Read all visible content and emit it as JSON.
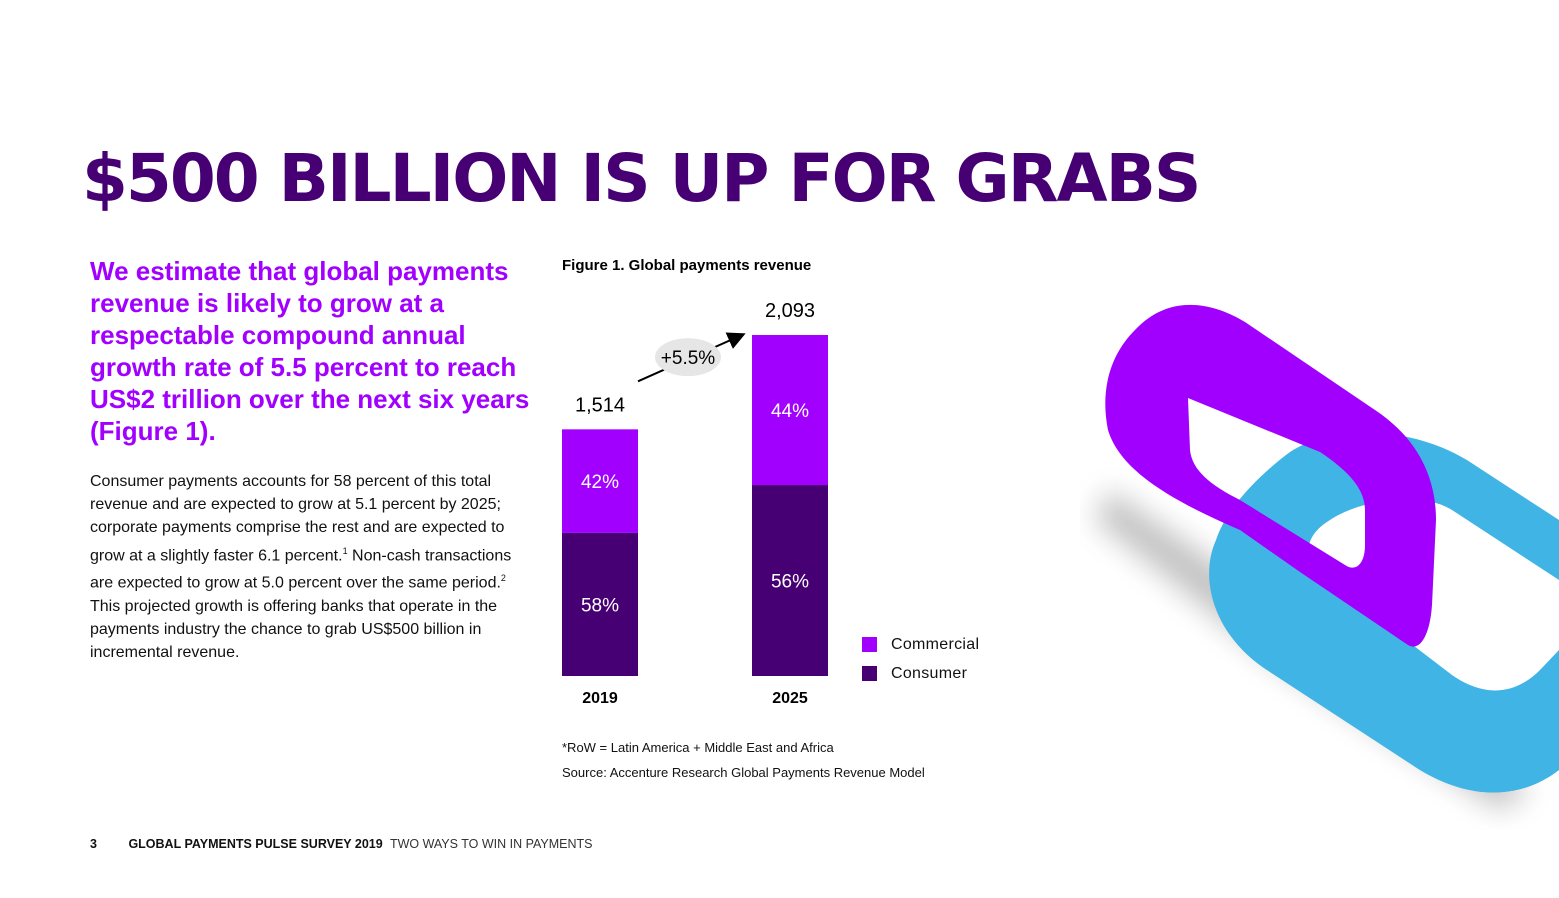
{
  "headline": "$500 BILLION IS UP FOR GRABS",
  "lead": "We estimate that global payments revenue is likely to grow at a respectable compound annual growth rate of 5.5 percent to reach US$2 trillion over the next six years (Figure 1).",
  "body_segments": [
    {
      "text": "Consumer payments accounts for 58 percent of this total revenue and are expected to grow at 5.1 percent by 2025; corporate payments comprise the rest and are expected to grow at a slightly faster 6.1 percent."
    },
    {
      "sup": "1"
    },
    {
      "text": " Non-cash transactions are expected to grow at 5.0 percent over the same period."
    },
    {
      "sup": "2"
    },
    {
      "text": " This projected growth is offering banks that operate in the payments industry the chance to grab US$500 billion in incremental revenue."
    }
  ],
  "figure": {
    "title": "Figure 1. Global payments revenue",
    "note": "*RoW = Latin America + Middle East and Africa",
    "source": "Source: Accenture Research Global Payments Revenue Model"
  },
  "chart_data": {
    "type": "bar",
    "stacked": true,
    "title": "Figure 1. Global payments revenue",
    "categories": [
      "2019",
      "2025"
    ],
    "totals": [
      1514,
      2093
    ],
    "total_labels": [
      "1,514",
      "2,093"
    ],
    "series": [
      {
        "name": "Consumer",
        "color": "#460073",
        "percent": [
          58,
          56
        ],
        "labels": [
          "58%",
          "56%"
        ]
      },
      {
        "name": "Commercial",
        "color": "#a100ff",
        "percent": [
          42,
          44
        ],
        "labels": [
          "42%",
          "44%"
        ]
      }
    ],
    "growth_label": "+5.5%",
    "legend_position": "right",
    "legend": [
      {
        "name": "Commercial",
        "color": "#a100ff"
      },
      {
        "name": "Consumer",
        "color": "#460073"
      }
    ],
    "ylim": [
      0,
      2093
    ],
    "grid": false
  },
  "footer": {
    "page_number": "3",
    "publication": "GLOBAL PAYMENTS PULSE SURVEY 2019",
    "subtitle": "TWO WAYS TO WIN IN PAYMENTS"
  },
  "colors": {
    "primary_dark": "#460073",
    "accent_purple": "#a100ff",
    "chain_blue": "#41b4e6"
  },
  "illustration": "chain-link-icon"
}
